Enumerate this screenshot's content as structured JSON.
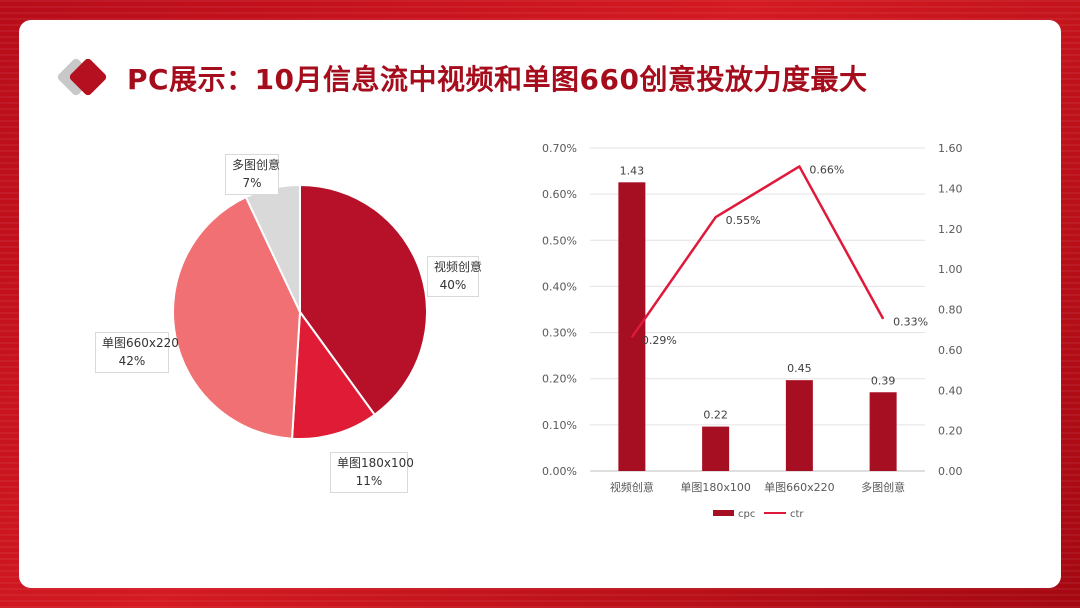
{
  "slide": {
    "title": "PC展示：10月信息流中视频和单图660创意投放力度最大"
  },
  "colors": {
    "brand_red": "#a50d1c",
    "bar": "#a60e22",
    "line": "#e0193a",
    "pie": [
      "#b7112a",
      "#df1b35",
      "#f07073",
      "#d9d9d9"
    ]
  },
  "chart_data": [
    {
      "type": "pie",
      "slices": [
        {
          "label": "视频创意",
          "value": 40,
          "text": "40%"
        },
        {
          "label": "单图180x100",
          "value": 11,
          "text": "11%"
        },
        {
          "label": "单图660x220",
          "value": 42,
          "text": "42%"
        },
        {
          "label": "多图创意",
          "value": 7,
          "text": "7%"
        }
      ]
    },
    {
      "type": "bar+line",
      "categories": [
        "视频创意",
        "单图180x100",
        "单图660x220",
        "多图创意"
      ],
      "series": [
        {
          "name": "cpc",
          "type": "bar",
          "axis": "right",
          "values": [
            1.43,
            0.22,
            0.45,
            0.39
          ],
          "labels": [
            "1.43",
            "0.22",
            "0.45",
            "0.39"
          ]
        },
        {
          "name": "ctr",
          "type": "line",
          "axis": "left",
          "values": [
            0.29,
            0.55,
            0.66,
            0.33
          ],
          "labels": [
            "0.29%",
            "0.55%",
            "0.66%",
            "0.33%"
          ]
        }
      ],
      "left_axis": {
        "ticks": [
          "0.00%",
          "0.10%",
          "0.20%",
          "0.30%",
          "0.40%",
          "0.50%",
          "0.60%",
          "0.70%"
        ],
        "range": [
          0,
          0.7
        ]
      },
      "right_axis": {
        "ticks": [
          "0.00",
          "0.20",
          "0.40",
          "0.60",
          "0.80",
          "1.00",
          "1.20",
          "1.40",
          "1.60"
        ],
        "range": [
          0,
          1.6
        ]
      },
      "legend": {
        "position": "bottom",
        "items": [
          "cpc",
          "ctr"
        ]
      },
      "grid": true
    }
  ]
}
